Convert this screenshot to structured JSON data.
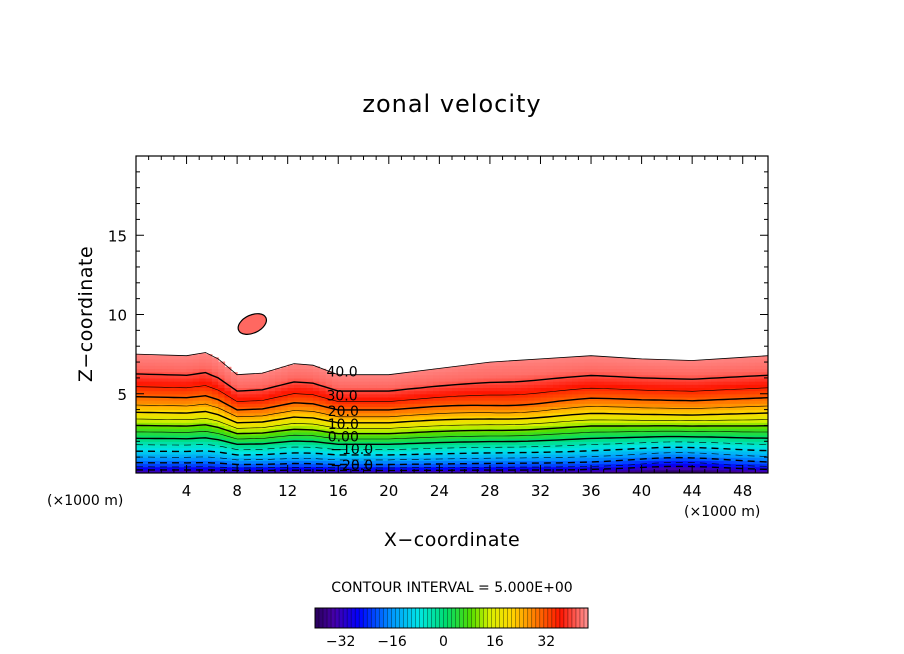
{
  "chart_data": {
    "type": "heatmap",
    "title": "zonal velocity",
    "xlabel": "X−coordinate",
    "ylabel": "Z−coordinate",
    "x_unit": "(×1000 m)",
    "z_unit": "(×1000 m)",
    "xlim": [
      0,
      50
    ],
    "ylim": [
      0,
      20
    ],
    "x_ticks": [
      "4",
      "8",
      "12",
      "16",
      "20",
      "24",
      "28",
      "32",
      "36",
      "40",
      "44",
      "48"
    ],
    "x_tick_values": [
      4,
      8,
      12,
      16,
      20,
      24,
      28,
      32,
      36,
      40,
      44,
      48
    ],
    "y_ticks": [
      "5",
      "10",
      "15"
    ],
    "y_tick_values": [
      5,
      10,
      15
    ],
    "contour_interval_text": "CONTOUR INTERVAL = 5.000E+00",
    "contour_interval": 5.0,
    "contour_labels": [
      {
        "text": "40.0",
        "x": 15.7,
        "z": 6.4
      },
      {
        "text": "30.0",
        "x": 15.7,
        "z": 4.9
      },
      {
        "text": "20.0",
        "x": 15.8,
        "z": 3.9
      },
      {
        "text": "10.0",
        "x": 15.8,
        "z": 3.1
      },
      {
        "text": "0.00",
        "x": 15.8,
        "z": 2.3
      },
      {
        "text": "−10.0",
        "x": 16.0,
        "z": 1.5
      },
      {
        "text": "−20.0",
        "x": 16.0,
        "z": 0.5
      }
    ],
    "top_boundary_z": [
      [
        0,
        7.5
      ],
      [
        4,
        7.4
      ],
      [
        5.5,
        7.6
      ],
      [
        6.5,
        7.2
      ],
      [
        8,
        6.2
      ],
      [
        10,
        6.3
      ],
      [
        12.5,
        6.9
      ],
      [
        14,
        6.8
      ],
      [
        16,
        6.2
      ],
      [
        20,
        6.2
      ],
      [
        24,
        6.6
      ],
      [
        28,
        7.0
      ],
      [
        32,
        7.2
      ],
      [
        36,
        7.4
      ],
      [
        40,
        7.2
      ],
      [
        44,
        7.1
      ],
      [
        48,
        7.3
      ],
      [
        50,
        7.4
      ]
    ],
    "isolated_patch": {
      "x": 9.2,
      "z": 9.4,
      "value": 42
    },
    "velocity_profile": [
      {
        "z": 0.0,
        "u": -35
      },
      {
        "z": 0.5,
        "u": -22
      },
      {
        "z": 1.2,
        "u": -12
      },
      {
        "z": 2.0,
        "u": -2
      },
      {
        "z": 2.8,
        "u": 8
      },
      {
        "z": 3.6,
        "u": 18
      },
      {
        "z": 4.5,
        "u": 28
      },
      {
        "z": 5.5,
        "u": 36
      },
      {
        "z": 6.5,
        "u": 42
      },
      {
        "z": 7.5,
        "u": 44
      }
    ],
    "colorbar": {
      "ticks": [
        "−32",
        "−16",
        "0",
        "16",
        "32"
      ],
      "tick_values": [
        -32,
        -16,
        0,
        16,
        32
      ],
      "range": [
        -40,
        45
      ]
    },
    "grid": false,
    "legend": "none"
  }
}
